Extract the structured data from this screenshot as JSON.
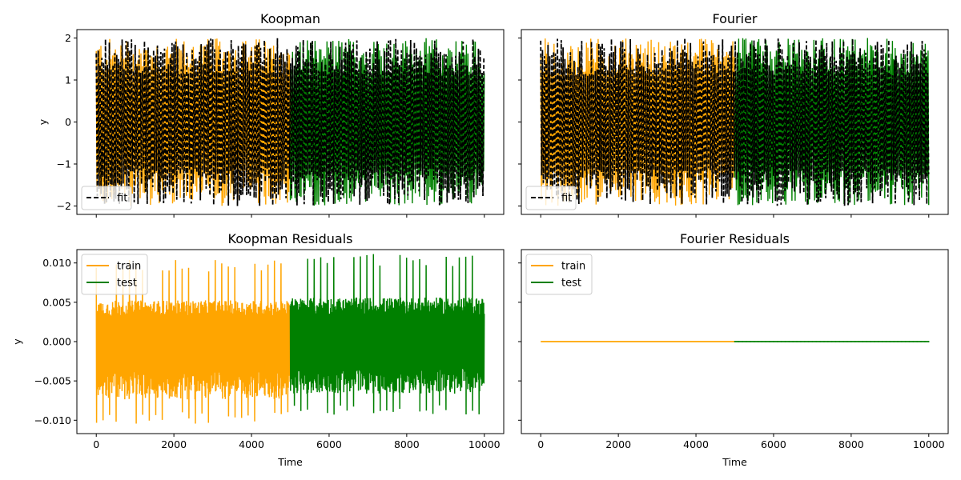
{
  "chart_data": [
    {
      "type": "line",
      "title": "Koopman",
      "xlabel": "",
      "ylabel": "y",
      "xlim": [
        -500,
        10500
      ],
      "ylim": [
        -2.2,
        2.2
      ],
      "xticks": [
        0,
        2000,
        4000,
        6000,
        8000,
        10000
      ],
      "xticklabels_visible": false,
      "yticks": [
        -2,
        -1,
        0,
        1,
        2
      ],
      "yticklabels": [
        "−2",
        "−1",
        "0",
        "1",
        "2"
      ],
      "legend": {
        "position": "lower-left",
        "entries": [
          {
            "label": "fit",
            "color": "#000000",
            "style": "dashed"
          }
        ]
      },
      "series": [
        {
          "role": "train",
          "color": "#ffa500",
          "x_range": [
            0,
            5000
          ],
          "amplitude": 2.0
        },
        {
          "role": "test",
          "color": "#008000",
          "x_range": [
            5000,
            10000
          ],
          "amplitude": 2.0
        },
        {
          "name": "fit",
          "color": "#000000",
          "style": "dashed",
          "x_range": [
            0,
            10000
          ],
          "amplitude": 2.0
        }
      ]
    },
    {
      "type": "line",
      "title": "Fourier",
      "xlabel": "",
      "ylabel": "",
      "xlim": [
        -500,
        10500
      ],
      "ylim": [
        -2.2,
        2.2
      ],
      "xticks": [
        0,
        2000,
        4000,
        6000,
        8000,
        10000
      ],
      "xticklabels_visible": false,
      "yticks": [
        -2,
        -1,
        0,
        1,
        2
      ],
      "yticklabels_visible": false,
      "legend": {
        "position": "lower-left",
        "entries": [
          {
            "label": "fit",
            "color": "#000000",
            "style": "dashed"
          }
        ]
      },
      "series": [
        {
          "role": "train",
          "color": "#ffa500",
          "x_range": [
            0,
            5000
          ],
          "amplitude": 2.0
        },
        {
          "role": "test",
          "color": "#008000",
          "x_range": [
            5000,
            10000
          ],
          "amplitude": 2.0
        },
        {
          "name": "fit",
          "color": "#000000",
          "style": "dashed",
          "x_range": [
            0,
            10000
          ],
          "amplitude": 2.0
        }
      ]
    },
    {
      "type": "line",
      "title": "Koopman Residuals",
      "xlabel": "Time",
      "ylabel": "y",
      "xlim": [
        -500,
        10500
      ],
      "ylim": [
        -0.0117,
        0.0117
      ],
      "xticks": [
        0,
        2000,
        4000,
        6000,
        8000,
        10000
      ],
      "xticklabels": [
        "0",
        "2000",
        "4000",
        "6000",
        "8000",
        "10000"
      ],
      "yticks": [
        -0.01,
        -0.005,
        0,
        0.005,
        0.01
      ],
      "yticklabels": [
        "−0.010",
        "−0.005",
        "0.000",
        "0.005",
        "0.010"
      ],
      "legend": {
        "position": "top-left",
        "entries": [
          {
            "label": "train",
            "color": "#ffa500"
          },
          {
            "label": "test",
            "color": "#008000"
          }
        ]
      },
      "series": [
        {
          "name": "train",
          "color": "#ffa500",
          "x_range": [
            0,
            5000
          ],
          "min": -0.0105,
          "max": 0.0105
        },
        {
          "name": "test",
          "color": "#008000",
          "x_range": [
            5000,
            10000
          ],
          "min": -0.0095,
          "max": 0.0112
        }
      ]
    },
    {
      "type": "line",
      "title": "Fourier Residuals",
      "xlabel": "Time",
      "ylabel": "",
      "xlim": [
        -500,
        10500
      ],
      "ylim": [
        -0.0117,
        0.0117
      ],
      "xticks": [
        0,
        2000,
        4000,
        6000,
        8000,
        10000
      ],
      "xticklabels": [
        "0",
        "2000",
        "4000",
        "6000",
        "8000",
        "10000"
      ],
      "yticks": [
        -0.01,
        -0.005,
        0,
        0.005,
        0.01
      ],
      "yticklabels_visible": false,
      "legend": {
        "position": "top-left",
        "entries": [
          {
            "label": "train",
            "color": "#ffa500"
          },
          {
            "label": "test",
            "color": "#008000"
          }
        ]
      },
      "series": [
        {
          "name": "train",
          "color": "#ffa500",
          "x_range": [
            0,
            5000
          ],
          "value": 0.0
        },
        {
          "name": "test",
          "color": "#008000",
          "x_range": [
            5000,
            10000
          ],
          "value": 0.0
        }
      ]
    }
  ]
}
